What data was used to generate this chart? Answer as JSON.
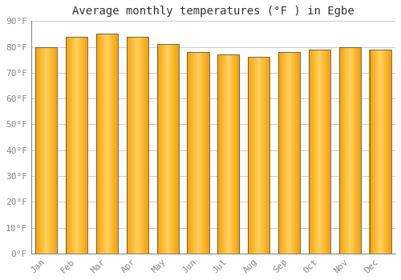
{
  "title": "Average monthly temperatures (°F ) in Egbe",
  "months": [
    "Jan",
    "Feb",
    "Mar",
    "Apr",
    "May",
    "Jun",
    "Jul",
    "Aug",
    "Sep",
    "Oct",
    "Nov",
    "Dec"
  ],
  "values": [
    80,
    84,
    85,
    84,
    81,
    78,
    77,
    76,
    78,
    79,
    80,
    79
  ],
  "ylim": [
    0,
    90
  ],
  "yticks": [
    0,
    10,
    20,
    30,
    40,
    50,
    60,
    70,
    80,
    90
  ],
  "ytick_labels": [
    "0°F",
    "10°F",
    "20°F",
    "30°F",
    "40°F",
    "50°F",
    "60°F",
    "70°F",
    "80°F",
    "90°F"
  ],
  "bar_color_center": "#FFD060",
  "bar_color_edge": "#F5A000",
  "bar_border_color": "#555555",
  "background_color": "#FFFFFF",
  "plot_bg_color": "#FFFFFF",
  "grid_color": "#CCCCCC",
  "title_fontsize": 10,
  "tick_fontsize": 8,
  "tick_color": "#888888",
  "title_color": "#333333"
}
